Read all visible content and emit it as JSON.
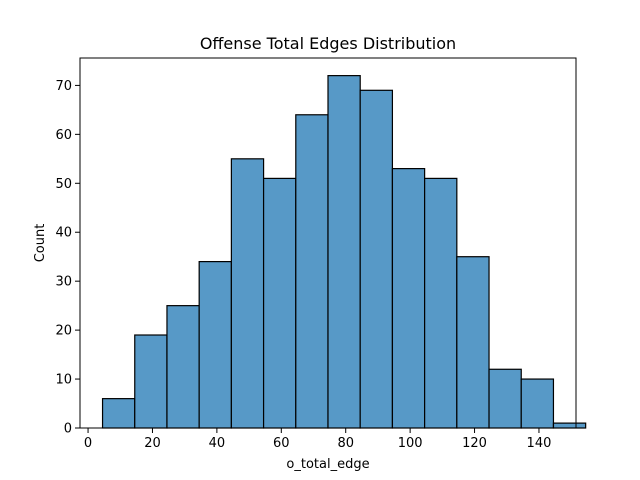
{
  "chart_data": {
    "type": "bar",
    "title": "Offense Total Edges Distribution",
    "xlabel": "o_total_edge",
    "ylabel": "Count",
    "bins": [
      {
        "x0": 4.5,
        "x1": 14.5,
        "count": 6
      },
      {
        "x0": 14.5,
        "x1": 24.5,
        "count": 19
      },
      {
        "x0": 24.5,
        "x1": 34.5,
        "count": 25
      },
      {
        "x0": 34.5,
        "x1": 44.5,
        "count": 34
      },
      {
        "x0": 44.5,
        "x1": 54.5,
        "count": 55
      },
      {
        "x0": 54.5,
        "x1": 64.5,
        "count": 51
      },
      {
        "x0": 64.5,
        "x1": 74.5,
        "count": 64
      },
      {
        "x0": 74.5,
        "x1": 84.5,
        "count": 72
      },
      {
        "x0": 84.5,
        "x1": 94.5,
        "count": 69
      },
      {
        "x0": 94.5,
        "x1": 104.5,
        "count": 53
      },
      {
        "x0": 104.5,
        "x1": 114.5,
        "count": 51
      },
      {
        "x0": 114.5,
        "x1": 124.5,
        "count": 35
      },
      {
        "x0": 124.5,
        "x1": 134.5,
        "count": 12
      },
      {
        "x0": 134.5,
        "x1": 144.5,
        "count": 10
      },
      {
        "x0": 144.5,
        "x1": 154.5,
        "count": 1
      }
    ],
    "xlim": [
      -2.5,
      151.5
    ],
    "ylim": [
      0,
      75.6
    ],
    "xticks": [
      0,
      20,
      40,
      60,
      80,
      100,
      120,
      140
    ],
    "yticks": [
      0,
      10,
      20,
      30,
      40,
      50,
      60,
      70
    ],
    "grid": false,
    "bar_color": "#5799c7",
    "edge_color": "#000000"
  }
}
